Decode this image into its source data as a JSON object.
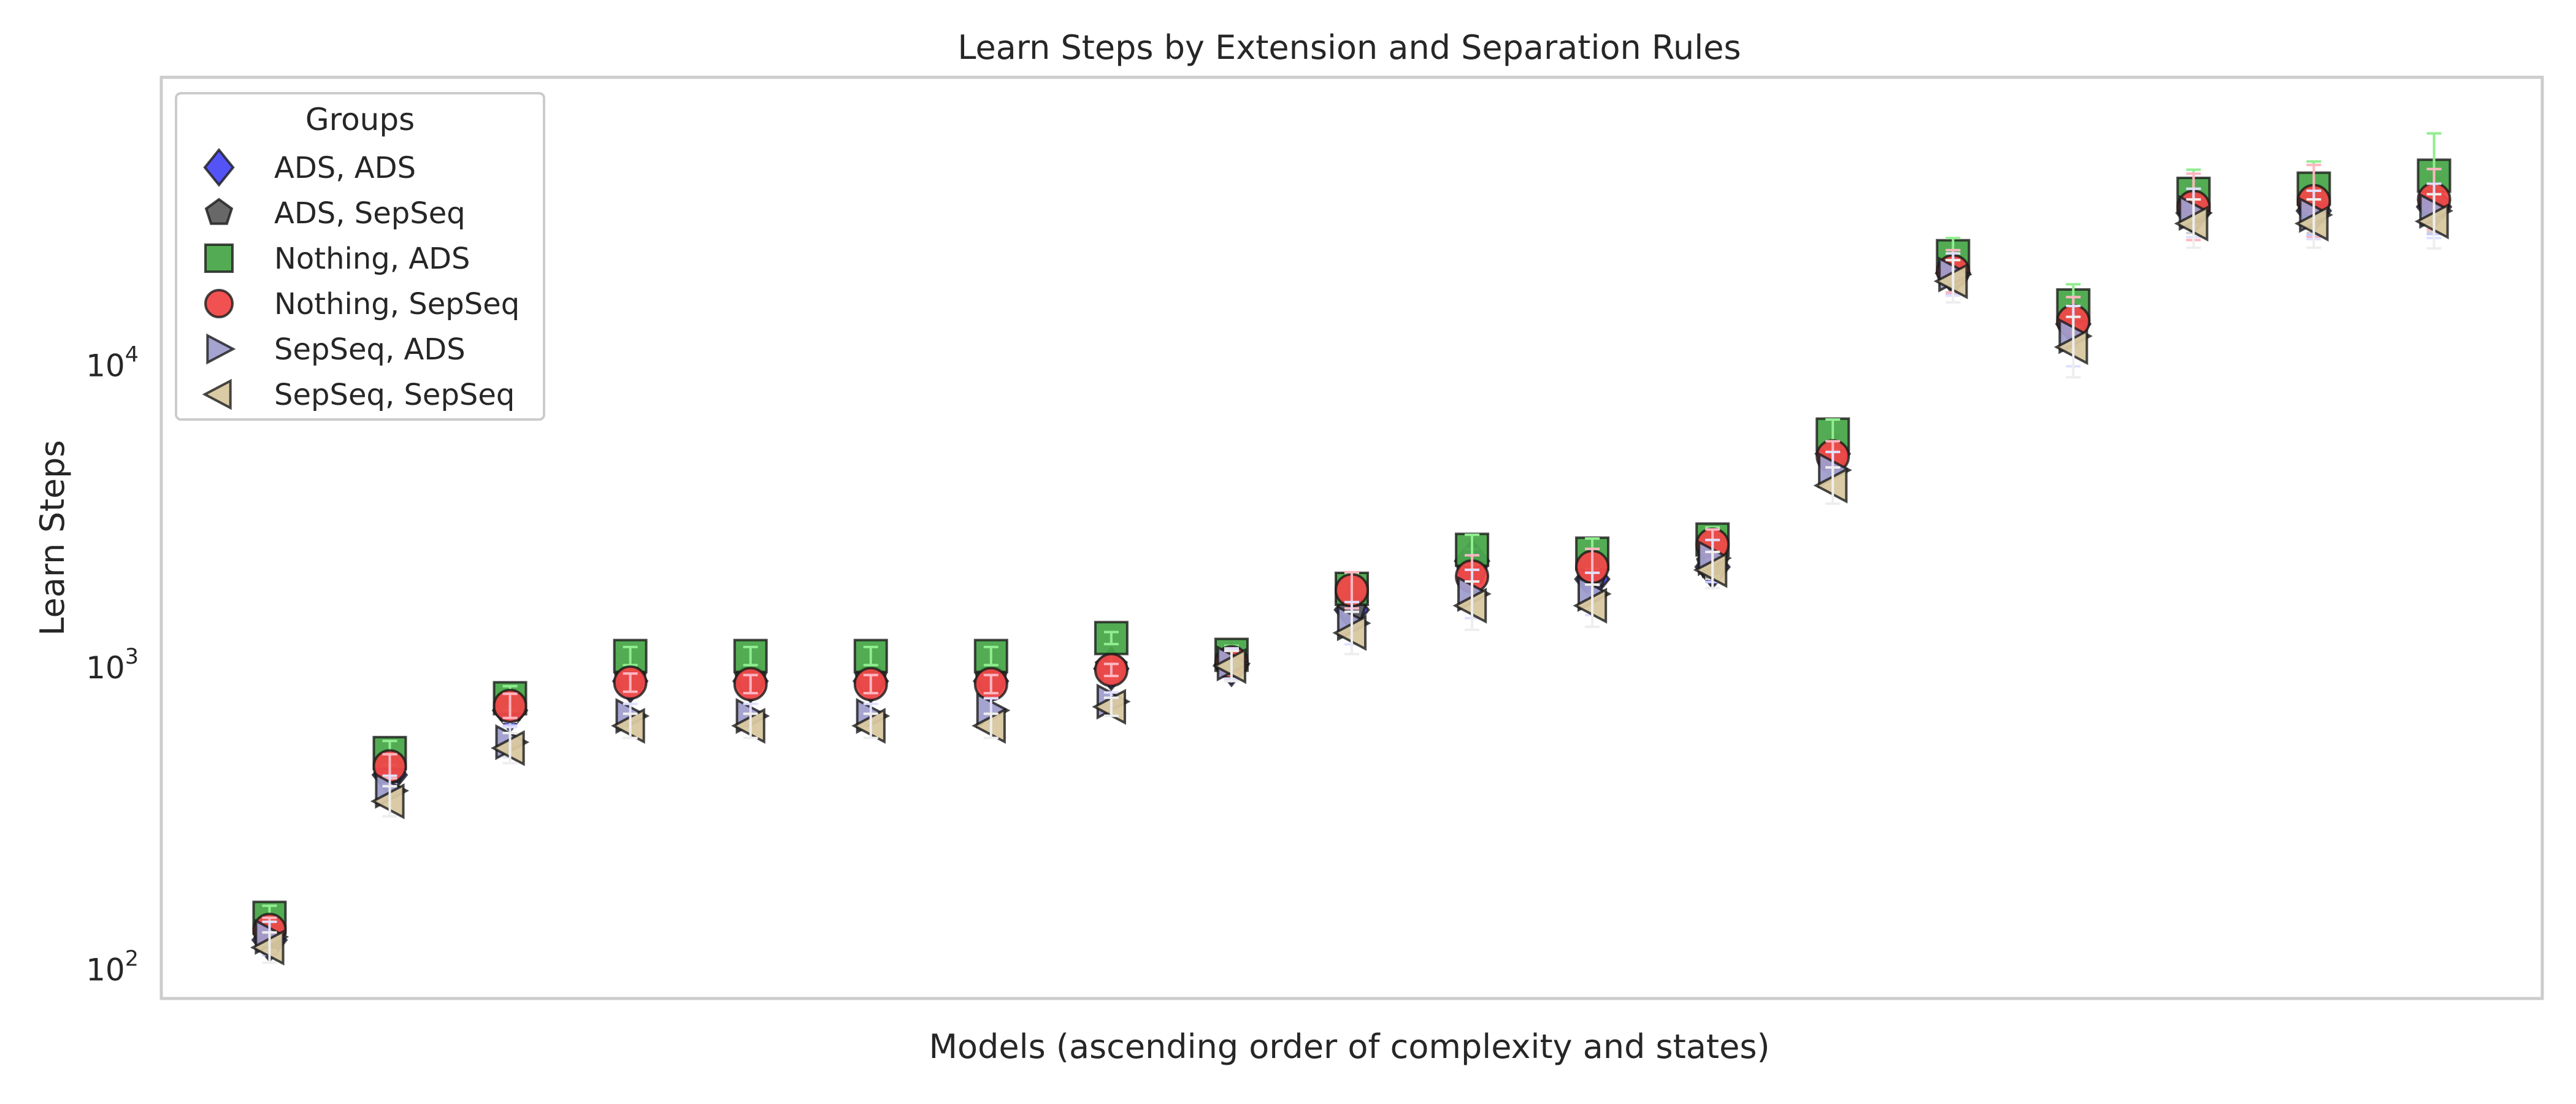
{
  "chart_data": {
    "type": "scatter",
    "title": "Learn Steps by Extension and Separation Rules",
    "xlabel": "Models (ascending order of complexity and states)",
    "ylabel": "Learn Steps",
    "yscale": "log",
    "ylim": [
      80,
      90000
    ],
    "xlim": [
      0.1,
      19.9
    ],
    "grid": false,
    "yticks": [
      {
        "value": 100,
        "base": "10",
        "exp": "2"
      },
      {
        "value": 1000,
        "base": "10",
        "exp": "3"
      },
      {
        "value": 10000,
        "base": "10",
        "exp": "4"
      }
    ],
    "x": [
      1,
      2,
      3,
      4,
      5,
      6,
      7,
      8,
      9,
      10,
      11,
      12,
      13,
      14,
      15,
      16,
      17,
      18,
      19
    ],
    "legend": {
      "title": "Groups",
      "placement": "upper-left"
    },
    "series": [
      {
        "name": "ADS, ADS",
        "marker": "diamond",
        "color": "#4b4bf5",
        "errcolor": "#c8c8ff",
        "values": [
          125,
          440,
          720,
          900,
          900,
          900,
          900,
          990,
          1020,
          1550,
          2250,
          1960,
          2150,
          5100,
          20200,
          13700,
          32000,
          32500,
          33500
        ],
        "err": [
          0.05,
          0.06,
          0.05,
          0.05,
          0.05,
          0.05,
          0.05,
          0.04,
          0.05,
          0.07,
          0.07,
          0.07,
          0.05,
          0.06,
          0.07,
          0.08,
          0.08,
          0.08,
          0.09
        ]
      },
      {
        "name": "ADS, SepSeq",
        "marker": "pentagon",
        "color": "#606060",
        "errcolor": "#d0d0d0",
        "values": [
          130,
          460,
          740,
          920,
          920,
          920,
          920,
          1000,
          1060,
          1600,
          2100,
          2050,
          2200,
          5000,
          20500,
          14000,
          33000,
          33000,
          34000
        ],
        "err": [
          0.05,
          0.05,
          0.05,
          0.05,
          0.05,
          0.05,
          0.05,
          0.04,
          0.05,
          0.07,
          0.07,
          0.07,
          0.05,
          0.06,
          0.07,
          0.08,
          0.08,
          0.08,
          0.09
        ]
      },
      {
        "name": "Nothing, ADS",
        "marker": "square",
        "color": "#4aa84a",
        "errcolor": "#90ee90",
        "values": [
          148,
          520,
          790,
          1090,
          1090,
          1090,
          1090,
          1250,
          1100,
          1820,
          2450,
          2380,
          2650,
          5900,
          23000,
          15800,
          37000,
          38500,
          42500
        ],
        "err": [
          0.04,
          0.04,
          0.04,
          0.03,
          0.03,
          0.03,
          0.03,
          0.02,
          0.03,
          0.05,
          0.05,
          0.05,
          0.04,
          0.05,
          0.06,
          0.07,
          0.08,
          0.09,
          0.14
        ]
      },
      {
        "name": "Nothing, SepSeq",
        "marker": "circle",
        "color": "#f04848",
        "errcolor": "#ffb6c1",
        "values": [
          135,
          470,
          745,
          890,
          880,
          880,
          880,
          980,
          1040,
          1800,
          2000,
          2150,
          2550,
          5000,
          20500,
          14000,
          33500,
          35000,
          35500
        ],
        "err": [
          0.04,
          0.04,
          0.04,
          0.03,
          0.03,
          0.03,
          0.03,
          0.02,
          0.04,
          0.06,
          0.07,
          0.06,
          0.05,
          0.05,
          0.07,
          0.08,
          0.11,
          0.12,
          0.1
        ]
      },
      {
        "name": "SepSeq, ADS",
        "marker": "triangle-right",
        "color": "#a09ece",
        "errcolor": "#e0e0ff",
        "values": [
          128,
          390,
          565,
          690,
          690,
          690,
          720,
          770,
          1030,
          1400,
          1750,
          1750,
          2300,
          4500,
          20000,
          12500,
          32000,
          31500,
          32500
        ],
        "err": [
          0.05,
          0.05,
          0.05,
          0.04,
          0.04,
          0.04,
          0.04,
          0.03,
          0.05,
          0.07,
          0.08,
          0.07,
          0.06,
          0.06,
          0.07,
          0.1,
          0.08,
          0.08,
          0.09
        ]
      },
      {
        "name": "SepSeq, SepSeq",
        "marker": "triangle-left",
        "color": "#d8c8a0",
        "errcolor": "#eeeeee",
        "values": [
          118,
          360,
          540,
          640,
          640,
          640,
          640,
          740,
          1010,
          1300,
          1600,
          1600,
          2100,
          4000,
          19000,
          11500,
          29500,
          29500,
          30000
        ],
        "err": [
          0.05,
          0.05,
          0.05,
          0.04,
          0.04,
          0.04,
          0.04,
          0.03,
          0.05,
          0.07,
          0.08,
          0.07,
          0.06,
          0.06,
          0.07,
          0.1,
          0.08,
          0.08,
          0.09
        ]
      }
    ]
  }
}
